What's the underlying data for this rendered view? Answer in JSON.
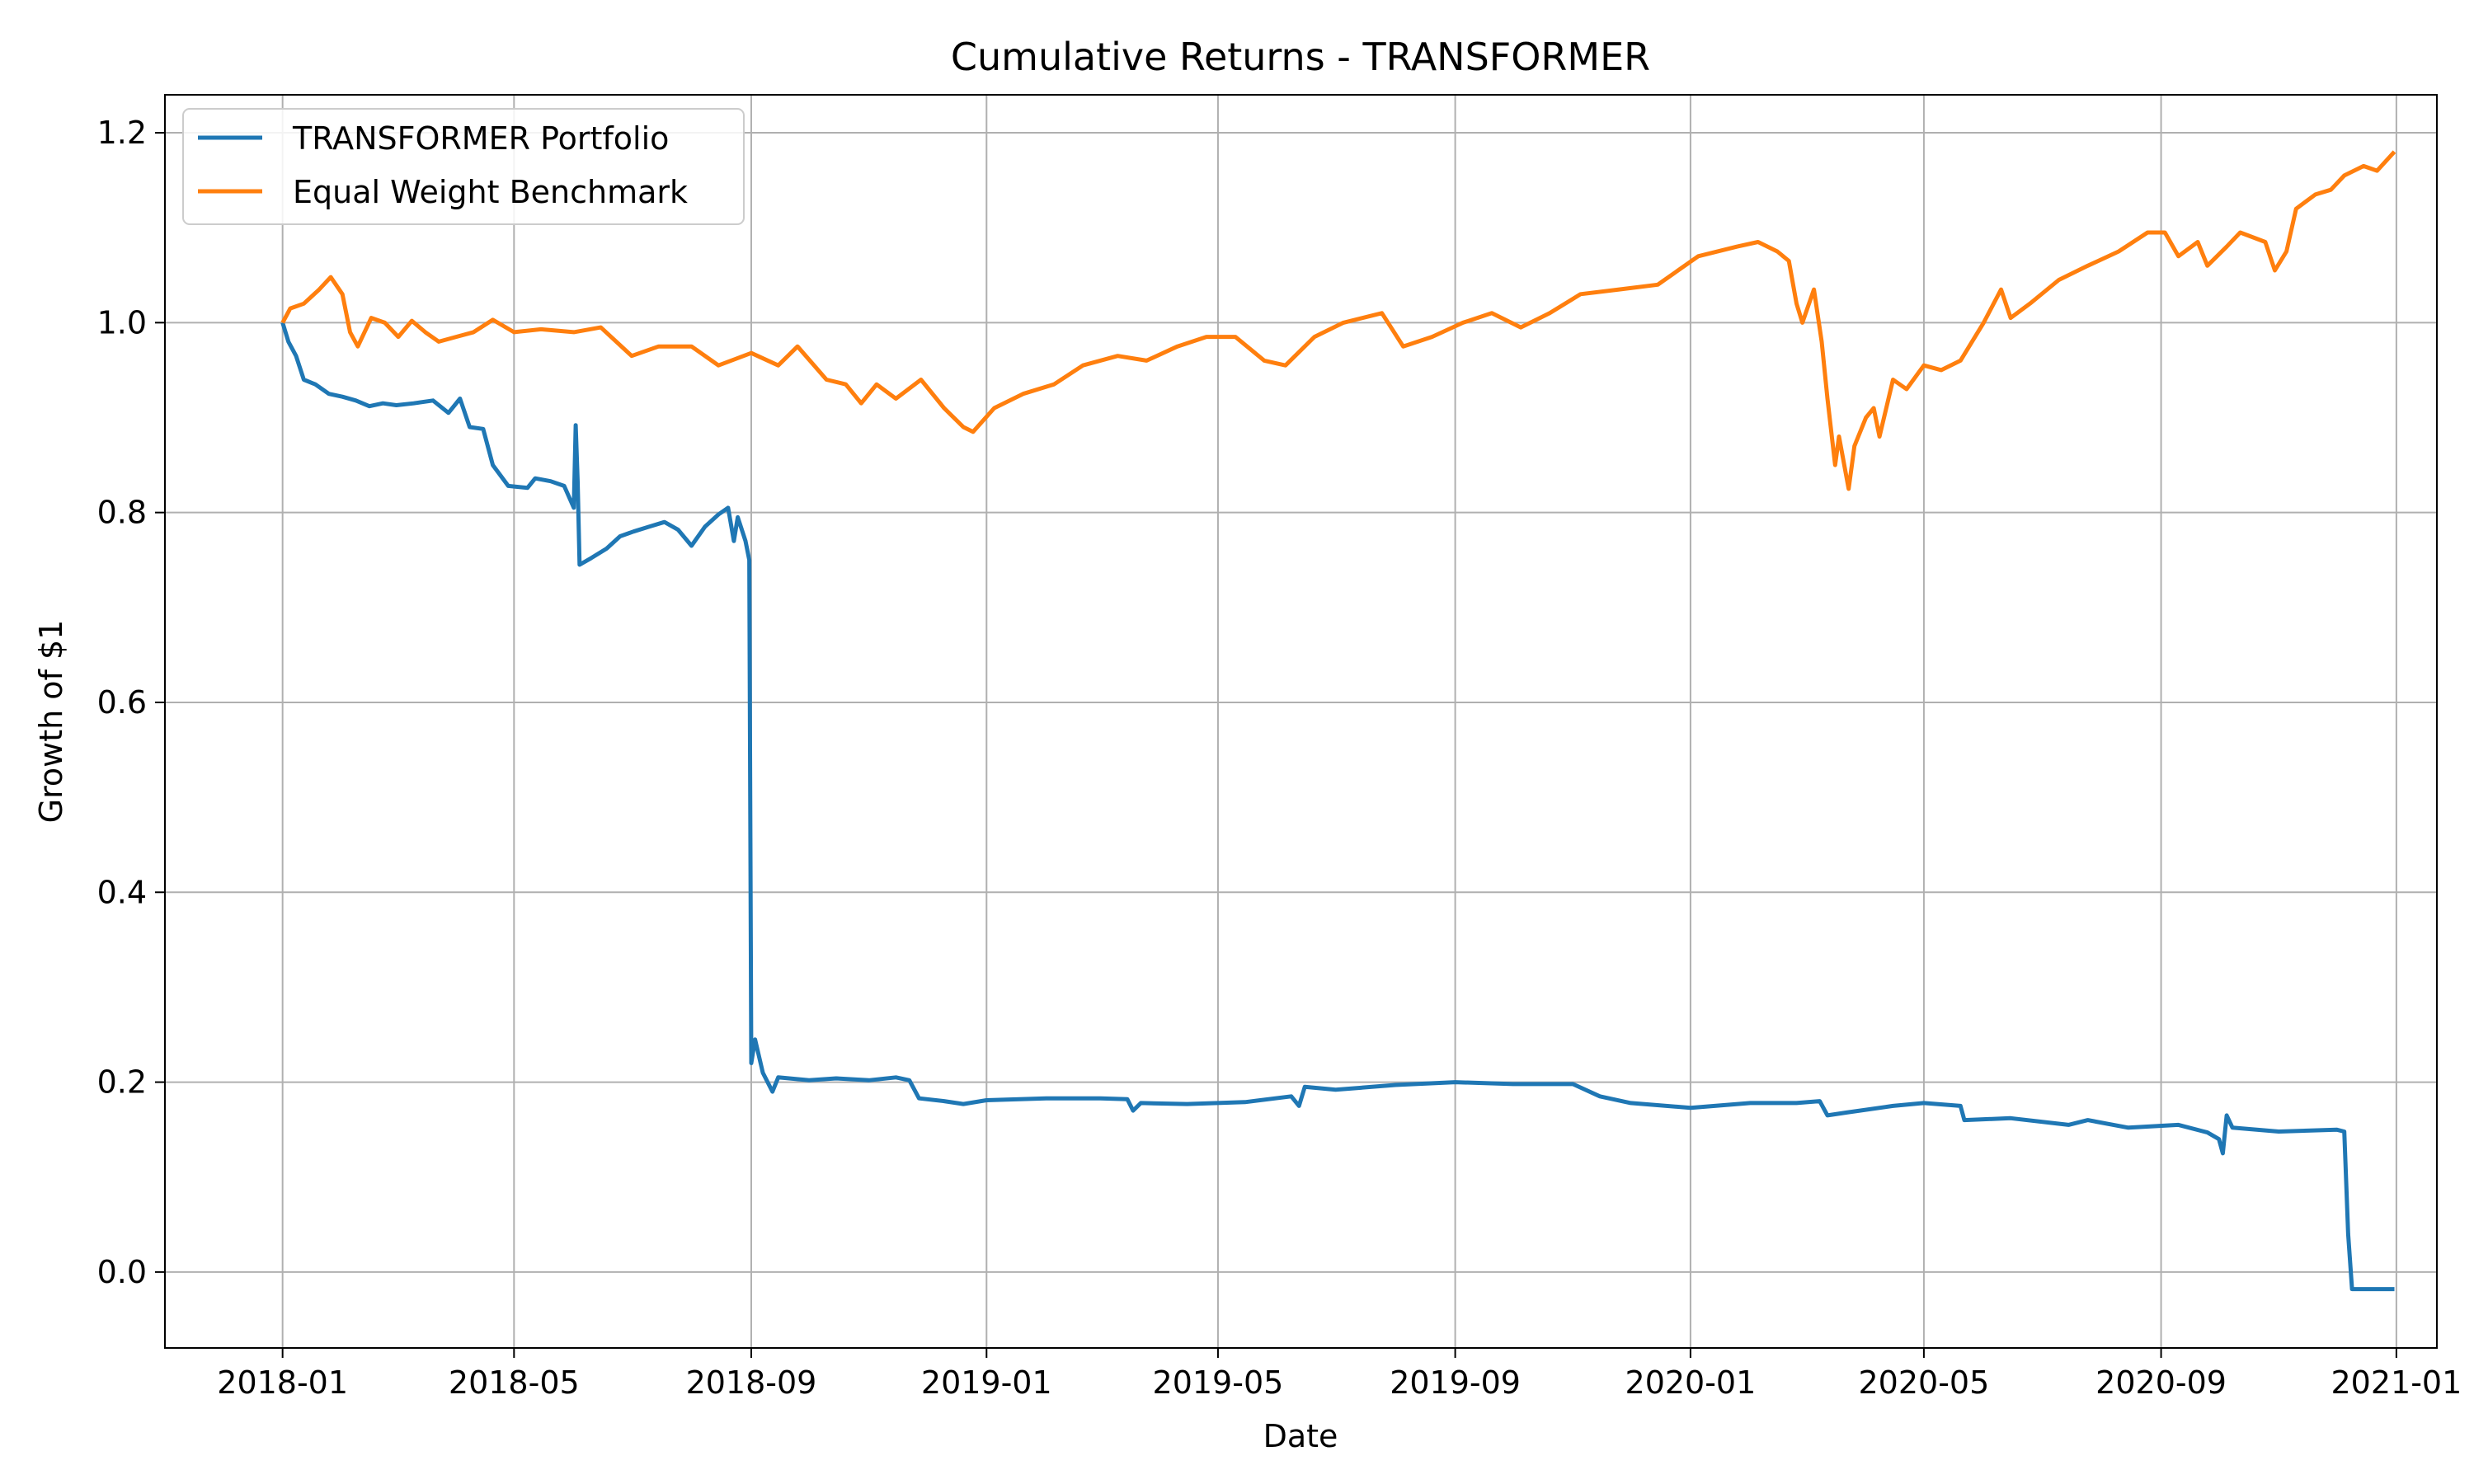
{
  "chart_data": {
    "type": "line",
    "title": "Cumulative Returns - TRANSFORMER",
    "xlabel": "Date",
    "ylabel": "Growth of $1",
    "x_range": [
      "2017-11-01",
      "2021-01-22"
    ],
    "ylim": [
      -0.08,
      1.24
    ],
    "x_ticks": [
      "2018-01",
      "2018-05",
      "2018-09",
      "2019-01",
      "2019-05",
      "2019-09",
      "2020-01",
      "2020-05",
      "2020-09",
      "2021-01"
    ],
    "y_ticks": [
      "0.0",
      "0.2",
      "0.4",
      "0.6",
      "0.8",
      "1.0",
      "1.2"
    ],
    "grid": true,
    "legend_position": "upper-left",
    "series": [
      {
        "name": "TRANSFORMER Portfolio",
        "color": "#1f77b4",
        "points": [
          [
            "2018-01-01",
            1.0
          ],
          [
            "2018-01-04",
            0.98
          ],
          [
            "2018-01-08",
            0.965
          ],
          [
            "2018-01-12",
            0.94
          ],
          [
            "2018-01-18",
            0.935
          ],
          [
            "2018-01-25",
            0.925
          ],
          [
            "2018-02-01",
            0.922
          ],
          [
            "2018-02-08",
            0.918
          ],
          [
            "2018-02-15",
            0.912
          ],
          [
            "2018-02-22",
            0.915
          ],
          [
            "2018-03-01",
            0.913
          ],
          [
            "2018-03-10",
            0.915
          ],
          [
            "2018-03-20",
            0.918
          ],
          [
            "2018-03-28",
            0.905
          ],
          [
            "2018-04-03",
            0.92
          ],
          [
            "2018-04-08",
            0.89
          ],
          [
            "2018-04-15",
            0.888
          ],
          [
            "2018-04-20",
            0.85
          ],
          [
            "2018-04-28",
            0.828
          ],
          [
            "2018-05-08",
            0.826
          ],
          [
            "2018-05-12",
            0.836
          ],
          [
            "2018-05-20",
            0.833
          ],
          [
            "2018-05-27",
            0.828
          ],
          [
            "2018-06-01",
            0.805
          ],
          [
            "2018-06-02",
            0.892
          ],
          [
            "2018-06-03",
            0.832
          ],
          [
            "2018-06-04",
            0.745
          ],
          [
            "2018-06-10",
            0.752
          ],
          [
            "2018-06-18",
            0.762
          ],
          [
            "2018-06-25",
            0.775
          ],
          [
            "2018-07-02",
            0.78
          ],
          [
            "2018-07-10",
            0.785
          ],
          [
            "2018-07-18",
            0.79
          ],
          [
            "2018-07-25",
            0.782
          ],
          [
            "2018-08-01",
            0.765
          ],
          [
            "2018-08-08",
            0.785
          ],
          [
            "2018-08-15",
            0.798
          ],
          [
            "2018-08-20",
            0.805
          ],
          [
            "2018-08-23",
            0.77
          ],
          [
            "2018-08-25",
            0.795
          ],
          [
            "2018-08-29",
            0.77
          ],
          [
            "2018-08-31",
            0.75
          ],
          [
            "2018-09-01",
            0.22
          ],
          [
            "2018-09-03",
            0.245
          ],
          [
            "2018-09-07",
            0.21
          ],
          [
            "2018-09-12",
            0.19
          ],
          [
            "2018-09-15",
            0.205
          ],
          [
            "2018-10-01",
            0.202
          ],
          [
            "2018-10-15",
            0.204
          ],
          [
            "2018-11-01",
            0.202
          ],
          [
            "2018-11-15",
            0.205
          ],
          [
            "2018-11-22",
            0.202
          ],
          [
            "2018-11-27",
            0.183
          ],
          [
            "2018-12-10",
            0.18
          ],
          [
            "2018-12-20",
            0.177
          ],
          [
            "2019-01-01",
            0.181
          ],
          [
            "2019-02-01",
            0.183
          ],
          [
            "2019-03-01",
            0.183
          ],
          [
            "2019-03-15",
            0.182
          ],
          [
            "2019-03-18",
            0.17
          ],
          [
            "2019-03-22",
            0.178
          ],
          [
            "2019-04-15",
            0.177
          ],
          [
            "2019-05-15",
            0.179
          ],
          [
            "2019-06-08",
            0.185
          ],
          [
            "2019-06-12",
            0.175
          ],
          [
            "2019-06-15",
            0.195
          ],
          [
            "2019-07-01",
            0.192
          ],
          [
            "2019-08-01",
            0.197
          ],
          [
            "2019-09-01",
            0.2
          ],
          [
            "2019-10-01",
            0.198
          ],
          [
            "2019-11-01",
            0.198
          ],
          [
            "2019-11-15",
            0.185
          ],
          [
            "2019-12-01",
            0.178
          ],
          [
            "2020-01-01",
            0.173
          ],
          [
            "2020-02-01",
            0.178
          ],
          [
            "2020-02-25",
            0.178
          ],
          [
            "2020-03-08",
            0.18
          ],
          [
            "2020-03-12",
            0.165
          ],
          [
            "2020-03-22",
            0.168
          ],
          [
            "2020-04-15",
            0.175
          ],
          [
            "2020-05-01",
            0.178
          ],
          [
            "2020-05-20",
            0.175
          ],
          [
            "2020-05-22",
            0.16
          ],
          [
            "2020-06-15",
            0.162
          ],
          [
            "2020-07-15",
            0.155
          ],
          [
            "2020-07-25",
            0.16
          ],
          [
            "2020-08-15",
            0.152
          ],
          [
            "2020-09-10",
            0.155
          ],
          [
            "2020-09-25",
            0.147
          ],
          [
            "2020-10-01",
            0.14
          ],
          [
            "2020-10-03",
            0.125
          ],
          [
            "2020-10-05",
            0.165
          ],
          [
            "2020-10-08",
            0.152
          ],
          [
            "2020-11-01",
            0.148
          ],
          [
            "2020-12-01",
            0.15
          ],
          [
            "2020-12-05",
            0.148
          ],
          [
            "2020-12-07",
            0.04
          ],
          [
            "2020-12-09",
            -0.018
          ],
          [
            "2020-12-31",
            -0.018
          ]
        ]
      },
      {
        "name": "Equal Weight Benchmark",
        "color": "#ff7f0e",
        "points": [
          [
            "2018-01-01",
            1.0
          ],
          [
            "2018-01-05",
            1.015
          ],
          [
            "2018-01-12",
            1.02
          ],
          [
            "2018-01-20",
            1.035
          ],
          [
            "2018-01-26",
            1.048
          ],
          [
            "2018-02-01",
            1.03
          ],
          [
            "2018-02-05",
            0.99
          ],
          [
            "2018-02-09",
            0.975
          ],
          [
            "2018-02-16",
            1.005
          ],
          [
            "2018-02-23",
            1.0
          ],
          [
            "2018-03-02",
            0.985
          ],
          [
            "2018-03-09",
            1.002
          ],
          [
            "2018-03-16",
            0.99
          ],
          [
            "2018-03-23",
            0.98
          ],
          [
            "2018-04-01",
            0.985
          ],
          [
            "2018-04-10",
            0.99
          ],
          [
            "2018-04-20",
            1.003
          ],
          [
            "2018-05-01",
            0.99
          ],
          [
            "2018-05-15",
            0.993
          ],
          [
            "2018-06-01",
            0.99
          ],
          [
            "2018-06-15",
            0.995
          ],
          [
            "2018-07-01",
            0.965
          ],
          [
            "2018-07-15",
            0.975
          ],
          [
            "2018-08-01",
            0.975
          ],
          [
            "2018-08-15",
            0.955
          ],
          [
            "2018-09-01",
            0.968
          ],
          [
            "2018-09-15",
            0.955
          ],
          [
            "2018-09-25",
            0.975
          ],
          [
            "2018-10-10",
            0.94
          ],
          [
            "2018-10-20",
            0.935
          ],
          [
            "2018-10-28",
            0.915
          ],
          [
            "2018-11-05",
            0.935
          ],
          [
            "2018-11-15",
            0.92
          ],
          [
            "2018-11-28",
            0.94
          ],
          [
            "2018-12-10",
            0.91
          ],
          [
            "2018-12-20",
            0.89
          ],
          [
            "2018-12-25",
            0.885
          ],
          [
            "2019-01-05",
            0.91
          ],
          [
            "2019-01-20",
            0.925
          ],
          [
            "2019-02-05",
            0.935
          ],
          [
            "2019-02-20",
            0.955
          ],
          [
            "2019-03-10",
            0.965
          ],
          [
            "2019-03-25",
            0.96
          ],
          [
            "2019-04-10",
            0.975
          ],
          [
            "2019-04-25",
            0.985
          ],
          [
            "2019-05-10",
            0.985
          ],
          [
            "2019-05-25",
            0.96
          ],
          [
            "2019-06-05",
            0.955
          ],
          [
            "2019-06-20",
            0.985
          ],
          [
            "2019-07-05",
            1.0
          ],
          [
            "2019-07-25",
            1.01
          ],
          [
            "2019-08-05",
            0.975
          ],
          [
            "2019-08-20",
            0.985
          ],
          [
            "2019-09-05",
            1.0
          ],
          [
            "2019-09-20",
            1.01
          ],
          [
            "2019-10-05",
            0.995
          ],
          [
            "2019-10-20",
            1.01
          ],
          [
            "2019-11-05",
            1.03
          ],
          [
            "2019-11-25",
            1.035
          ],
          [
            "2019-12-15",
            1.04
          ],
          [
            "2020-01-05",
            1.07
          ],
          [
            "2020-01-25",
            1.08
          ],
          [
            "2020-02-05",
            1.085
          ],
          [
            "2020-02-15",
            1.075
          ],
          [
            "2020-02-21",
            1.065
          ],
          [
            "2020-02-25",
            1.02
          ],
          [
            "2020-02-28",
            1.0
          ],
          [
            "2020-03-05",
            1.035
          ],
          [
            "2020-03-09",
            0.98
          ],
          [
            "2020-03-12",
            0.92
          ],
          [
            "2020-03-16",
            0.85
          ],
          [
            "2020-03-18",
            0.88
          ],
          [
            "2020-03-23",
            0.825
          ],
          [
            "2020-03-26",
            0.87
          ],
          [
            "2020-04-01",
            0.9
          ],
          [
            "2020-04-05",
            0.91
          ],
          [
            "2020-04-08",
            0.88
          ],
          [
            "2020-04-15",
            0.94
          ],
          [
            "2020-04-22",
            0.93
          ],
          [
            "2020-05-01",
            0.955
          ],
          [
            "2020-05-10",
            0.95
          ],
          [
            "2020-05-20",
            0.96
          ],
          [
            "2020-06-01",
            1.0
          ],
          [
            "2020-06-10",
            1.035
          ],
          [
            "2020-06-15",
            1.005
          ],
          [
            "2020-06-25",
            1.02
          ],
          [
            "2020-07-10",
            1.045
          ],
          [
            "2020-07-25",
            1.06
          ],
          [
            "2020-08-10",
            1.075
          ],
          [
            "2020-08-25",
            1.095
          ],
          [
            "2020-09-03",
            1.095
          ],
          [
            "2020-09-10",
            1.07
          ],
          [
            "2020-09-20",
            1.085
          ],
          [
            "2020-09-25",
            1.06
          ],
          [
            "2020-10-05",
            1.08
          ],
          [
            "2020-10-12",
            1.095
          ],
          [
            "2020-10-25",
            1.085
          ],
          [
            "2020-10-30",
            1.055
          ],
          [
            "2020-11-05",
            1.075
          ],
          [
            "2020-11-10",
            1.12
          ],
          [
            "2020-11-20",
            1.135
          ],
          [
            "2020-11-28",
            1.14
          ],
          [
            "2020-12-05",
            1.155
          ],
          [
            "2020-12-15",
            1.165
          ],
          [
            "2020-12-22",
            1.16
          ],
          [
            "2020-12-31",
            1.18
          ]
        ]
      }
    ]
  }
}
